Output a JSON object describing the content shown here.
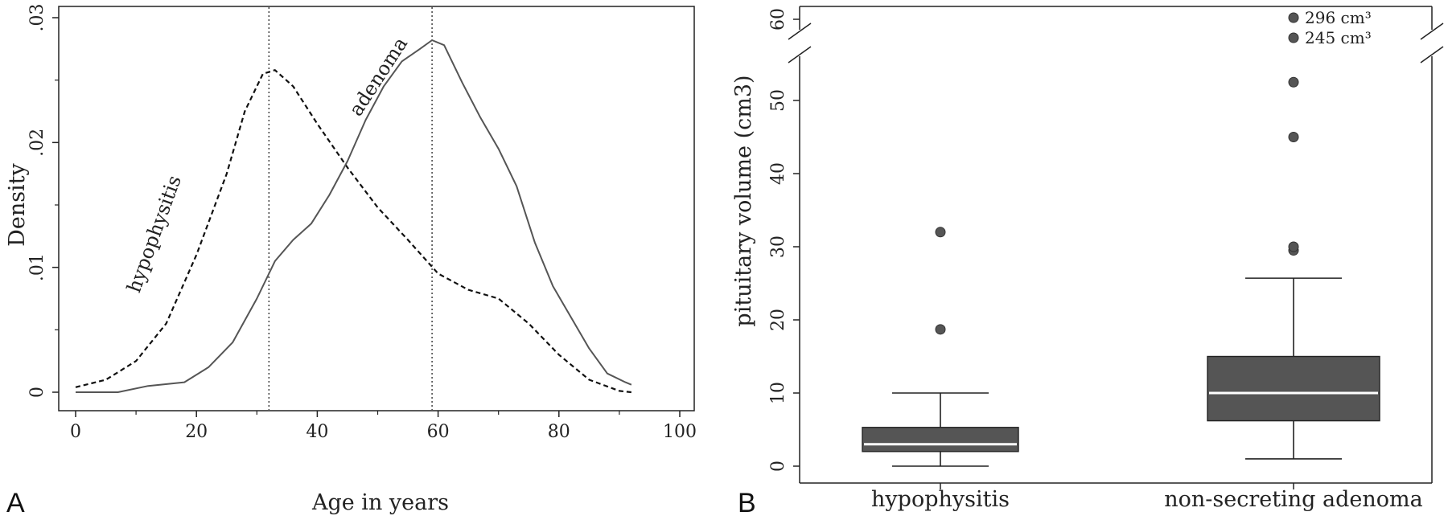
{
  "chart_data": [
    {
      "type": "line",
      "panel": "A",
      "title": "",
      "xlabel": "Age in years",
      "ylabel": "Density",
      "xlim": [
        0,
        100
      ],
      "ylim": [
        0,
        0.03
      ],
      "x_ticks": [
        0,
        20,
        40,
        60,
        80,
        100
      ],
      "x_tick_labels": [
        "0",
        "20",
        "40",
        "60",
        "80",
        "100"
      ],
      "y_ticks": [
        0,
        0.01,
        0.02,
        0.03
      ],
      "y_tick_labels": [
        "0",
        ".01",
        ".02",
        ".03"
      ],
      "grid": false,
      "legend": "none",
      "reference_lines": [
        32,
        59
      ],
      "series": [
        {
          "name": "hypophysitis",
          "style": "dashed",
          "x": [
            0,
            5,
            10,
            15,
            20,
            25,
            28,
            31,
            33,
            36,
            40,
            45,
            50,
            55,
            60,
            65,
            70,
            75,
            80,
            85,
            90,
            92
          ],
          "y": [
            0.0004,
            0.001,
            0.0025,
            0.0055,
            0.011,
            0.0175,
            0.0225,
            0.0255,
            0.0258,
            0.0245,
            0.0215,
            0.018,
            0.0148,
            0.0122,
            0.0095,
            0.0082,
            0.0075,
            0.0055,
            0.003,
            0.001,
            0.0001,
            0.0
          ]
        },
        {
          "name": "adenoma",
          "style": "solid",
          "x": [
            0,
            7,
            12,
            18,
            22,
            26,
            30,
            33,
            36,
            39,
            42,
            45,
            48,
            51,
            54,
            57,
            59,
            61,
            64,
            67,
            70,
            73,
            76,
            79,
            82,
            85,
            88,
            91,
            92
          ],
          "y": [
            0.0,
            0.0,
            0.0005,
            0.0008,
            0.002,
            0.004,
            0.0075,
            0.0105,
            0.0122,
            0.0135,
            0.0158,
            0.0185,
            0.0218,
            0.0245,
            0.0265,
            0.0275,
            0.0282,
            0.0278,
            0.0248,
            0.022,
            0.0195,
            0.0165,
            0.012,
            0.0085,
            0.006,
            0.0035,
            0.0015,
            0.0008,
            0.0006
          ]
        }
      ],
      "annotations": [
        {
          "text": "hypophysitis",
          "x": 14,
          "y": 0.0125
        },
        {
          "text": "adenoma",
          "x": 51,
          "y": 0.025
        }
      ]
    },
    {
      "type": "box",
      "panel": "B",
      "title": "",
      "xlabel": "",
      "ylabel": "pituitary volume (cm3)",
      "ylim": [
        0,
        55
      ],
      "y_ticks": [
        0,
        10,
        20,
        30,
        40,
        50
      ],
      "y_tick_labels": [
        "0",
        "10",
        "20",
        "30",
        "40",
        "50"
      ],
      "broken_axis_tick": {
        "value": 60,
        "label": "60"
      },
      "categories": [
        "hypophysitis",
        "non-secreting adenoma"
      ],
      "boxes": [
        {
          "category": "hypophysitis",
          "whisker_low": 0,
          "q1": 2,
          "median": 3,
          "q3": 5.3,
          "whisker_high": 10,
          "outliers": [
            18.7,
            32
          ]
        },
        {
          "category": "non-secreting adenoma",
          "whisker_low": 1,
          "q1": 6.2,
          "median": 10,
          "q3": 15,
          "whisker_high": 25.7,
          "outliers": [
            29.5,
            30,
            45,
            52.5
          ]
        }
      ],
      "broken_axis_outliers": [
        {
          "category": "non-secreting adenoma",
          "value": 296,
          "label": "296 cm³"
        },
        {
          "category": "non-secreting adenoma",
          "value": 245,
          "label": "245 cm³"
        }
      ],
      "grid": false,
      "legend": "none",
      "colors": {
        "box_fill": "#555555",
        "median_line": "#ffffff",
        "outlier": "#555555"
      }
    }
  ],
  "panel_letters": {
    "a": "A",
    "b": "B"
  }
}
